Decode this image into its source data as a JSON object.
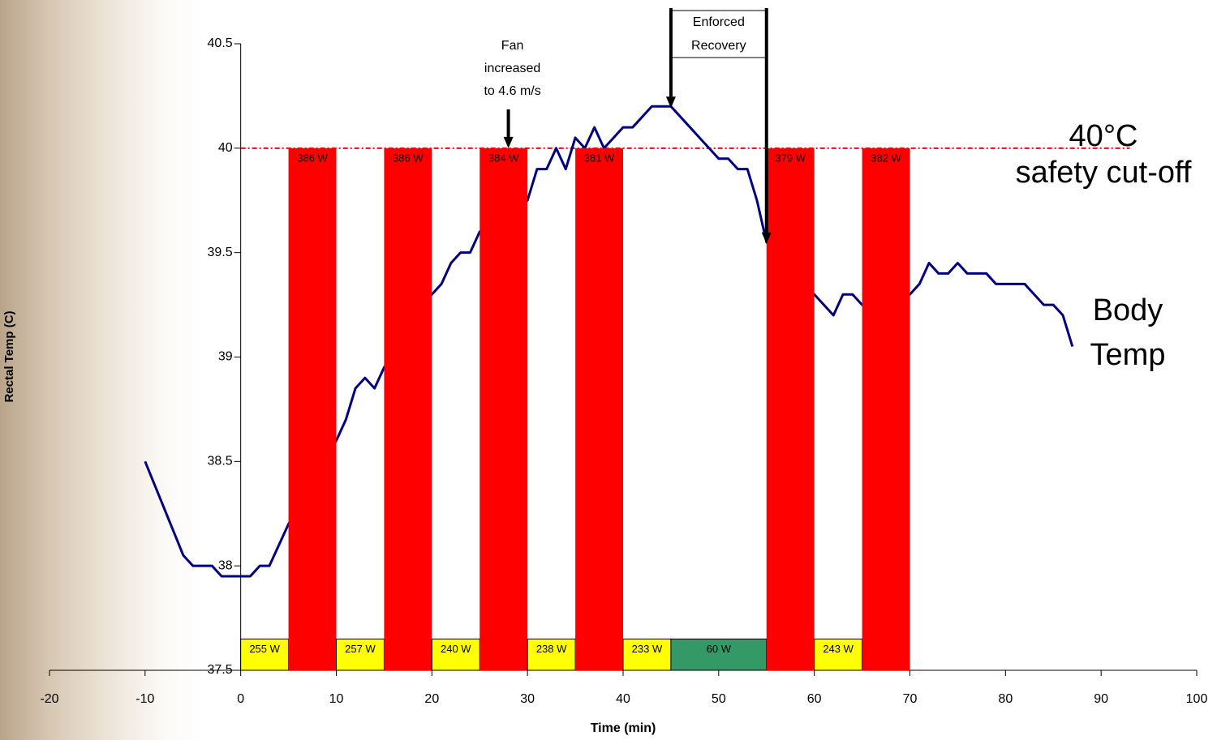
{
  "chart_data": {
    "type": "line",
    "x_label": "Time (min)",
    "y_label": "Rectal Temp (C)",
    "xlim": [
      -20,
      100
    ],
    "xticks": [
      -20,
      -10,
      0,
      10,
      20,
      30,
      40,
      50,
      60,
      70,
      80,
      90,
      100
    ],
    "ylim": [
      37.5,
      40.5
    ],
    "yticks": [
      37.5,
      38,
      38.5,
      39,
      39.5,
      40,
      40.5
    ],
    "series": [
      {
        "color": "#000080",
        "x": [
          -10,
          -6,
          -5,
          -3,
          -2,
          0,
          1,
          2,
          3,
          4,
          5,
          10,
          11,
          12,
          13,
          14,
          15,
          20,
          21,
          22,
          23,
          24,
          25,
          30,
          31,
          32,
          33,
          34,
          35,
          36,
          37,
          38,
          39,
          40,
          41,
          42,
          43,
          44,
          45,
          46,
          47,
          48,
          49,
          50,
          51,
          52,
          53,
          54,
          55,
          60,
          61,
          62,
          63,
          64,
          65,
          70,
          71,
          72,
          73,
          74,
          75,
          76,
          77,
          78,
          79,
          80,
          81,
          82,
          83,
          84,
          85,
          86,
          87
        ],
        "values": [
          38.5,
          38.05,
          38.0,
          38.0,
          37.95,
          37.95,
          37.95,
          38.0,
          38.0,
          38.1,
          38.2,
          38.6,
          38.7,
          38.85,
          38.9,
          38.85,
          38.95,
          39.3,
          39.35,
          39.45,
          39.5,
          39.5,
          39.6,
          39.75,
          39.9,
          39.9,
          40.0,
          39.9,
          40.05,
          40.0,
          40.1,
          40.0,
          40.05,
          40.1,
          40.1,
          40.15,
          40.2,
          40.2,
          40.2,
          40.15,
          40.1,
          40.05,
          40.0,
          39.95,
          39.95,
          39.9,
          39.9,
          39.75,
          39.55,
          39.3,
          39.25,
          39.2,
          39.3,
          39.3,
          39.25,
          39.3,
          39.35,
          39.45,
          39.4,
          39.4,
          39.45,
          39.4,
          39.4,
          39.4,
          39.35,
          39.35,
          39.35,
          39.35,
          39.3,
          39.25,
          39.25,
          39.2,
          39.05
        ]
      }
    ],
    "intervals": [
      {
        "x": [
          0,
          5
        ],
        "y": [
          37.5,
          37.65
        ],
        "color": "#ffff00",
        "label": "255 W"
      },
      {
        "x": [
          5,
          10
        ],
        "y": [
          37.5,
          40
        ],
        "color": "#ff0000",
        "label": "386 W"
      },
      {
        "x": [
          10,
          15
        ],
        "y": [
          37.5,
          37.65
        ],
        "color": "#ffff00",
        "label": "257 W"
      },
      {
        "x": [
          15,
          20
        ],
        "y": [
          37.5,
          40
        ],
        "color": "#ff0000",
        "label": "386 W"
      },
      {
        "x": [
          20,
          25
        ],
        "y": [
          37.5,
          37.65
        ],
        "color": "#ffff00",
        "label": "240 W"
      },
      {
        "x": [
          25,
          30
        ],
        "y": [
          37.5,
          40
        ],
        "color": "#ff0000",
        "label": "384 W"
      },
      {
        "x": [
          30,
          35
        ],
        "y": [
          37.5,
          37.65
        ],
        "color": "#ffff00",
        "label": "238 W"
      },
      {
        "x": [
          35,
          40
        ],
        "y": [
          37.5,
          40
        ],
        "color": "#ff0000",
        "label": "381 W"
      },
      {
        "x": [
          40,
          45
        ],
        "y": [
          37.5,
          37.65
        ],
        "color": "#ffff00",
        "label": "233 W"
      },
      {
        "x": [
          45,
          55
        ],
        "y": [
          37.5,
          37.65
        ],
        "color": "#339966",
        "label": "60 W"
      },
      {
        "x": [
          55,
          60
        ],
        "y": [
          37.5,
          40
        ],
        "color": "#ff0000",
        "label": "379 W"
      },
      {
        "x": [
          60,
          65
        ],
        "y": [
          37.5,
          37.65
        ],
        "color": "#ffff00",
        "label": "243 W"
      },
      {
        "x": [
          65,
          70
        ],
        "y": [
          37.5,
          40
        ],
        "color": "#ff0000",
        "label": "382 W"
      }
    ],
    "threshold": {
      "y": 40,
      "x": [
        0,
        93
      ],
      "color": "#ff0000",
      "label": [
        "40°C",
        "safety cut-off"
      ]
    },
    "series_label": [
      "Body",
      "Temp"
    ],
    "annotations": [
      {
        "text": [
          "Fan",
          "increased",
          "to 4.6 m/s"
        ],
        "x": [
          28
        ]
      },
      {
        "text": [
          "Enforced",
          "Recovery"
        ],
        "x": [
          45,
          55
        ]
      }
    ]
  }
}
